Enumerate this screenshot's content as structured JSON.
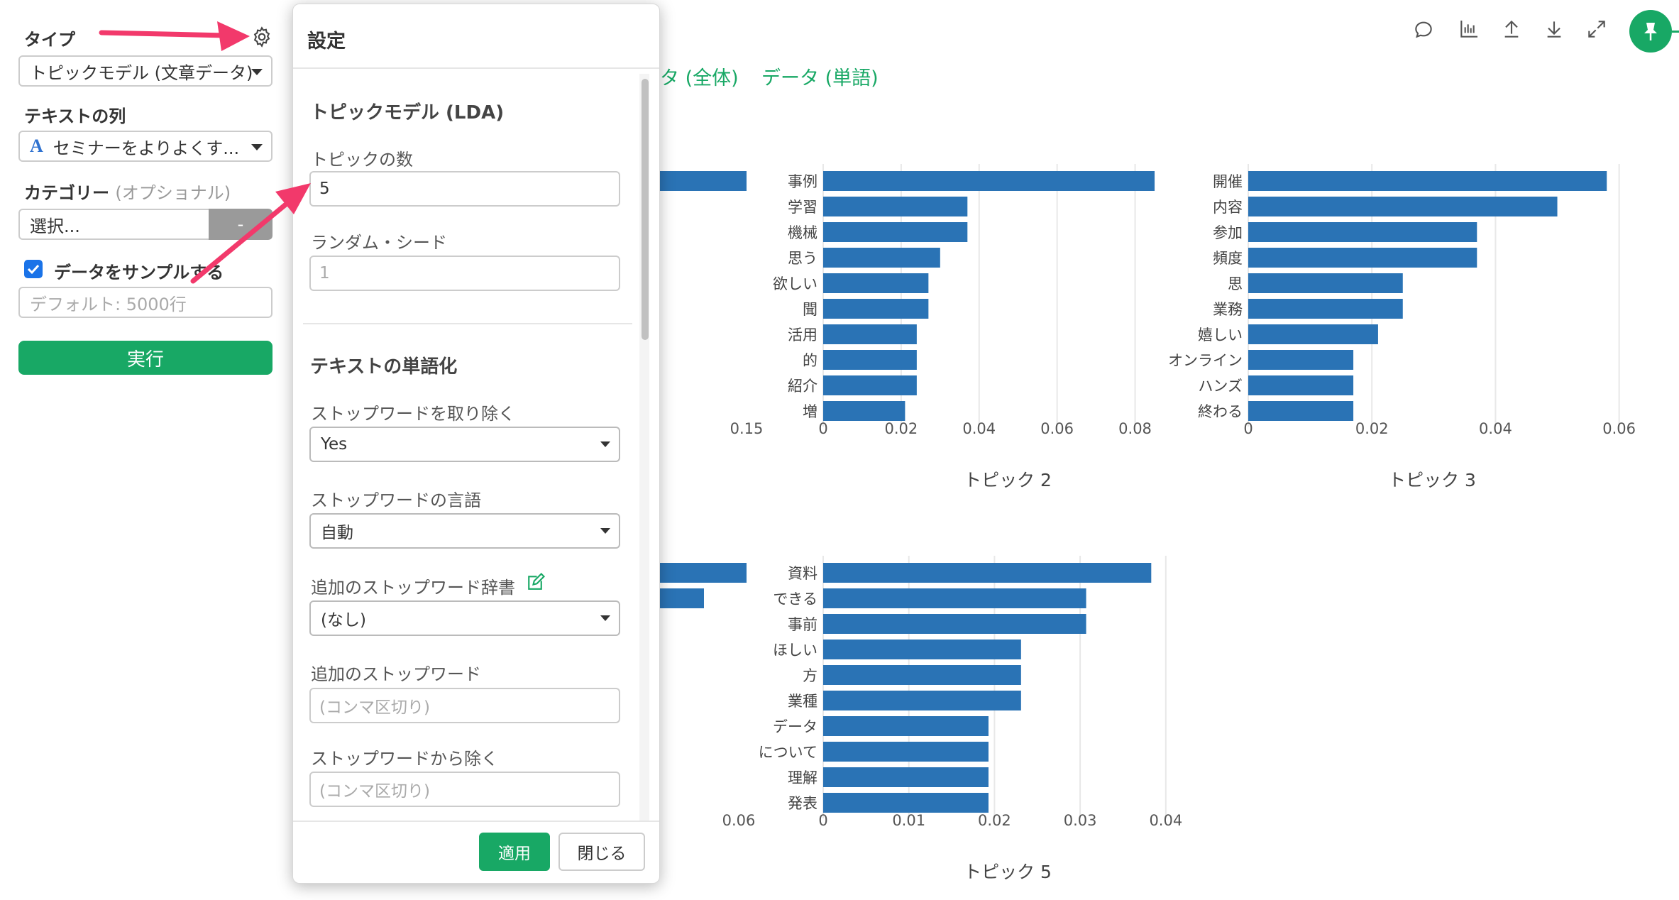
{
  "sidebar": {
    "type_label": "タイプ",
    "type_value": "トピックモデル (文章データ)",
    "text_col_label": "テキストの列",
    "text_col_icon_letter": "A",
    "text_col_value": "セミナーをよりよくす...",
    "category_label": "カテゴリー",
    "category_optional": "(オプショナル)",
    "category_placeholder": "選択...",
    "category_button": "-",
    "sample_checkbox_label": "データをサンプルする",
    "sample_checked": true,
    "sample_placeholder": "デフォルト: 5000行",
    "run_button": "実行"
  },
  "tabs": [
    "タ (全体)",
    "データ (単語)"
  ],
  "toolbar_icons": [
    "comment-icon",
    "bar-chart-icon",
    "upload-icon",
    "download-icon",
    "expand-icon",
    "pin-icon"
  ],
  "popup": {
    "title": "設定",
    "section_lda": "トピックモデル (LDA)",
    "num_topics_label": "トピックの数",
    "num_topics_value": "5",
    "seed_label": "ランダム・シード",
    "seed_placeholder": "1",
    "section_tokenize": "テキストの単語化",
    "remove_stopwords_label": "ストップワードを取り除く",
    "remove_stopwords_value": "Yes",
    "stopword_lang_label": "ストップワードの言語",
    "stopword_lang_value": "自動",
    "extra_dict_label": "追加のストップワード辞書",
    "extra_dict_value": "(なし)",
    "extra_stopwords_label": "追加のストップワード",
    "extra_stopwords_placeholder": "(コンマ区切り)",
    "exclude_label": "ストップワードから除く",
    "exclude_placeholder": "(コンマ区切り)",
    "apply_button": "適用",
    "close_button": "閉じる"
  },
  "colors": {
    "accent": "#18a865",
    "bar": "#2a73b5",
    "arrow": "#f2396b"
  },
  "chart_data": [
    {
      "type": "bar",
      "title": "トピック 2",
      "categories": [
        "事例",
        "学習",
        "機械",
        "思う",
        "欲しい",
        "聞",
        "活用",
        "的",
        "紹介",
        "増"
      ],
      "values": [
        0.085,
        0.037,
        0.037,
        0.03,
        0.027,
        0.027,
        0.024,
        0.024,
        0.024,
        0.021
      ],
      "xticks": [
        "0",
        "0.02",
        "0.04",
        "0.06",
        "0.08"
      ],
      "xlim": [
        0,
        0.089
      ]
    },
    {
      "type": "bar",
      "title": "トピック 3",
      "categories": [
        "開催",
        "内容",
        "参加",
        "頻度",
        "思",
        "業務",
        "嬉しい",
        "オンライン",
        "ハンズ",
        "終わる"
      ],
      "values": [
        0.058,
        0.05,
        0.037,
        0.037,
        0.025,
        0.025,
        0.021,
        0.017,
        0.017,
        0.017
      ],
      "xticks": [
        "0",
        "0.02",
        "0.04",
        "0.06"
      ],
      "xlim": [
        0,
        0.0605
      ]
    },
    {
      "type": "bar",
      "title": "トピック 5",
      "categories": [
        "資料",
        "できる",
        "事前",
        "ほしい",
        "方",
        "業種",
        "データ",
        "について",
        "理解",
        "発表"
      ],
      "values": [
        0.0383,
        0.0307,
        0.0307,
        0.0231,
        0.0231,
        0.0231,
        0.0193,
        0.0193,
        0.0193,
        0.0193
      ],
      "xticks": [
        "0",
        "0.01",
        "0.02",
        "0.03",
        "0.04"
      ],
      "xlim": [
        0,
        0.0425
      ]
    },
    {
      "type": "bar",
      "title": "",
      "partial": true,
      "xticks": [
        "0.15"
      ],
      "bars_visible": 1
    },
    {
      "type": "bar",
      "title": "",
      "partial": true,
      "xticks": [
        "0.06"
      ],
      "bars_visible": 2
    }
  ]
}
